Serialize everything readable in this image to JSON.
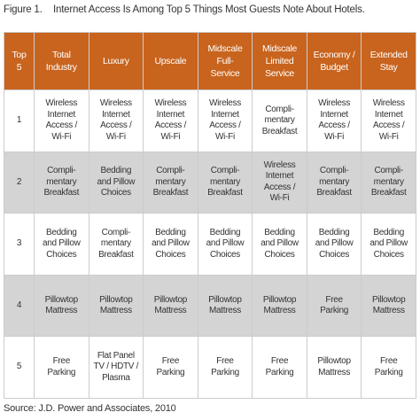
{
  "figure": {
    "label": "Figure 1.",
    "title": "Internet Access Is Among Top 5 Things Most Guests Note About Hotels."
  },
  "table": {
    "headers": [
      "Top\n5",
      "Total\nIndustry",
      "Luxury",
      "Upscale",
      "Midscale\nFull-\nService",
      "Midscale\nLimited\nService",
      "Economy /\nBudget",
      "Extended\nStay"
    ],
    "rows": [
      [
        "1",
        "Wireless\nInternet\nAccess /\nWi-Fi",
        "Wireless\nInternet\nAccess /\nWi-Fi",
        "Wireless\nInternet\nAccess /\nWi-Fi",
        "Wireless\nInternet\nAccess /\nWi-Fi",
        "Compli-\nmentary\nBreakfast",
        "Wireless\nInternet\nAccess /\nWi-Fi",
        "Wireless\nInternet\nAccess /\nWi-Fi"
      ],
      [
        "2",
        "Compli-\nmentary\nBreakfast",
        "Bedding\nand Pillow\nChoices",
        "Compli-\nmentary\nBreakfast",
        "Compli-\nmentary\nBreakfast",
        "Wireless\nInternet\nAccess /\nWi-Fi",
        "Compli-\nmentary\nBreakfast",
        "Compli-\nmentary\nBreakfast"
      ],
      [
        "3",
        "Bedding\nand Pillow\nChoices",
        "Compli-\nmentary\nBreakfast",
        "Bedding\nand Pillow\nChoices",
        "Bedding\nand Pillow\nChoices",
        "Bedding\nand Pillow\nChoices",
        "Bedding\nand Pillow\nChoices",
        "Bedding\nand Pillow\nChoices"
      ],
      [
        "4",
        "Pillowtop\nMattress",
        "Pillowtop\nMattress",
        "Pillowtop\nMattress",
        "Pillowtop\nMattress",
        "Pillowtop\nMattress",
        "Free\nParking",
        "Pillowtop\nMattress"
      ],
      [
        "5",
        "Free\nParking",
        "Flat Panel\nTV / HDTV /\nPlasma",
        "Free\nParking",
        "Free\nParking",
        "Free\nParking",
        "Pillowtop\nMattress",
        "Free\nParking"
      ]
    ]
  },
  "source": "Source: J.D. Power and Associates, 2010"
}
